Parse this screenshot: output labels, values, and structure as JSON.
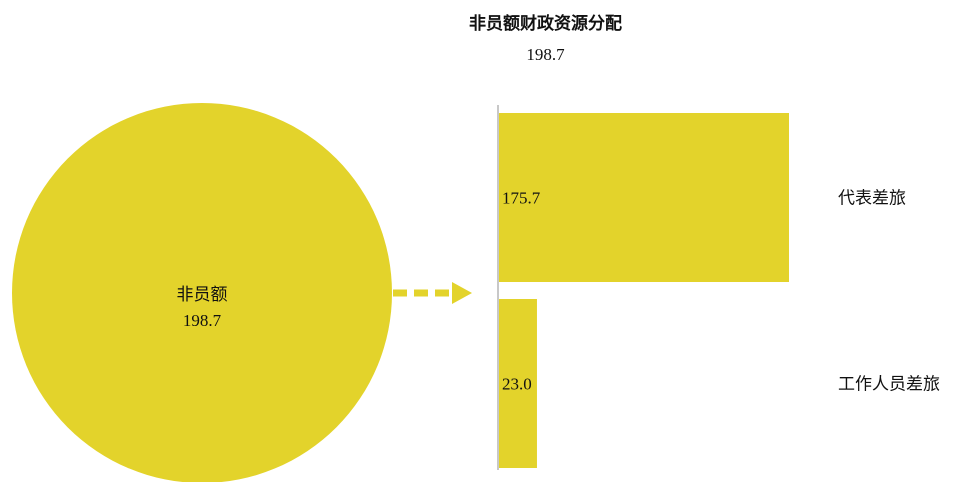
{
  "chart_data": {
    "type": "bar",
    "title": "非员额财政资源分配",
    "subtitle": "198.7",
    "source": {
      "label": "非员额",
      "value": "198.7"
    },
    "categories": [
      "代表差旅",
      "工作人员差旅"
    ],
    "values": [
      175.7,
      23.0
    ],
    "value_labels": [
      "175.7",
      "23.0"
    ],
    "xlim": [
      0,
      198.7
    ],
    "grid": false,
    "legend": "none",
    "colors": {
      "bar": "#E3D32B",
      "circle": "#E3D32B",
      "arrow": "#E3D32B",
      "axis": "#C8C8C8"
    }
  }
}
